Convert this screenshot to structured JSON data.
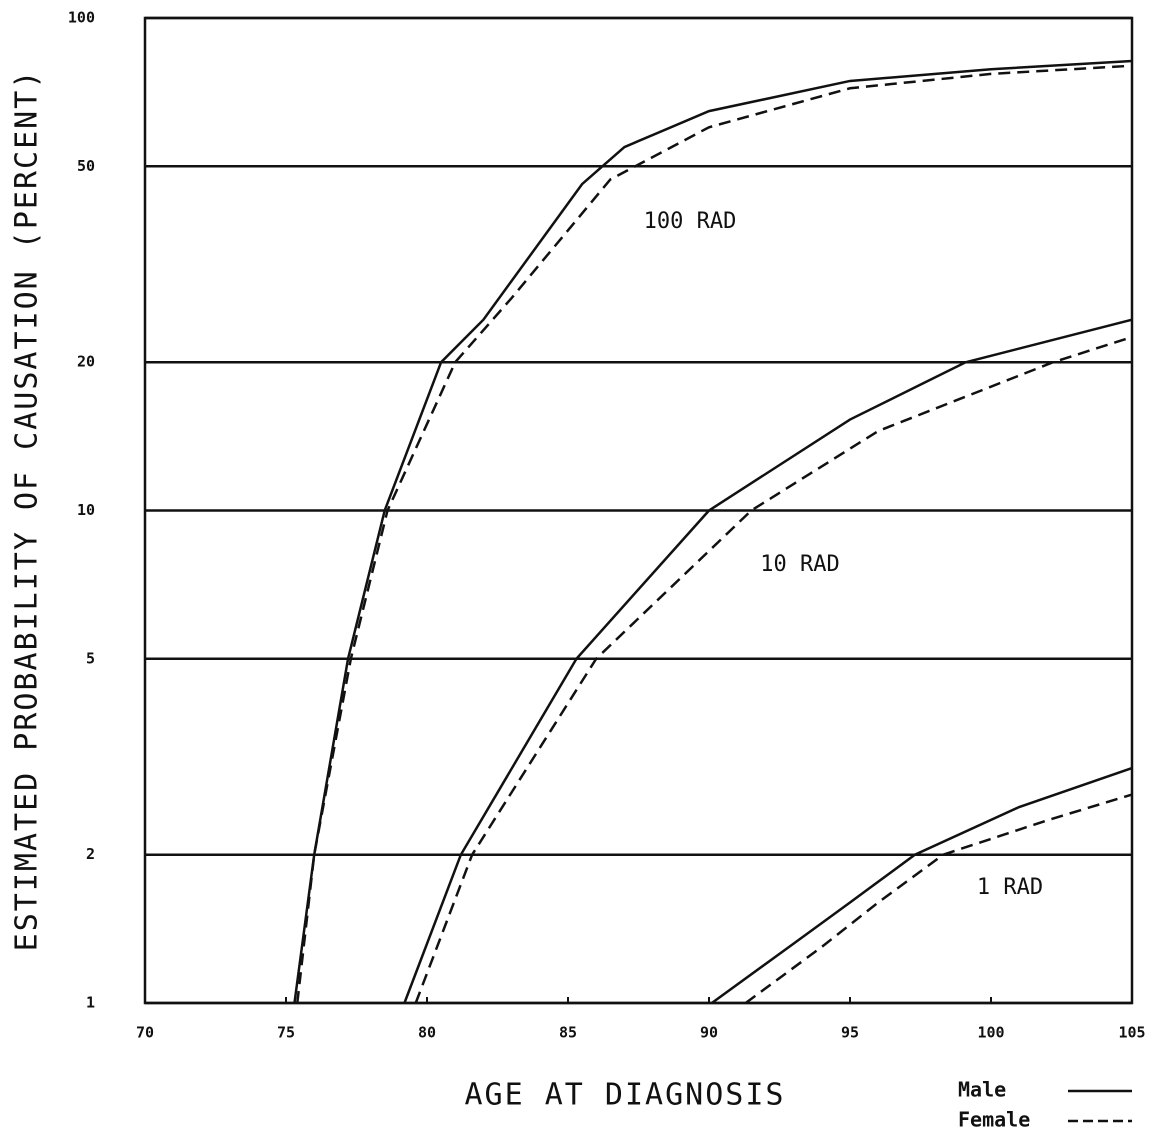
{
  "chart_data": {
    "type": "line",
    "xlabel": "AGE AT DIAGNOSIS",
    "ylabel": "ESTIMATED PROBABILITY OF CAUSATION (PERCENT)",
    "xlim": [
      70,
      105
    ],
    "xticks": [
      70,
      75,
      80,
      85,
      90,
      95,
      100,
      105
    ],
    "ylim": [
      1,
      100
    ],
    "yticks": [
      1,
      2,
      5,
      10,
      20,
      50,
      100
    ],
    "log_y": true,
    "grid": true,
    "legend_position": "lower right",
    "legend": [
      {
        "name": "Male",
        "dash": "solid"
      },
      {
        "name": "Female",
        "dash": "dashed"
      }
    ],
    "curves": [
      {
        "label": "100 RAD",
        "male": {
          "x": [
            75.3,
            76,
            77.2,
            78.5,
            80.5,
            82,
            85.5,
            87,
            90,
            95,
            100,
            105
          ],
          "values": [
            1,
            2,
            5,
            10,
            20,
            24.4,
            46,
            54.7,
            64.7,
            74.5,
            78.7,
            81.8
          ]
        },
        "female": {
          "x": [
            75.4,
            76,
            77.3,
            78.6,
            81,
            83,
            86.5,
            90,
            95,
            100,
            105
          ],
          "values": [
            1,
            2,
            5,
            10,
            20,
            27,
            47,
            60,
            72,
            77,
            80
          ]
        }
      },
      {
        "label": "10 RAD",
        "male": {
          "x": [
            79.2,
            81.2,
            85.3,
            90,
            95,
            99.1,
            105
          ],
          "values": [
            1,
            2,
            5,
            10,
            15.3,
            20,
            24.4
          ]
        },
        "female": {
          "x": [
            79.6,
            81.6,
            86,
            91.5,
            96,
            102.2,
            105
          ],
          "values": [
            1,
            2,
            5,
            10,
            14.5,
            20,
            22.5
          ]
        }
      },
      {
        "label": "1 RAD",
        "male": {
          "x": [
            90.1,
            93,
            95,
            97.3,
            101,
            105
          ],
          "values": [
            1,
            1.32,
            1.6,
            2,
            2.5,
            3.0
          ]
        },
        "female": {
          "x": [
            91.3,
            94,
            96,
            98.3,
            102,
            105
          ],
          "values": [
            1,
            1.3,
            1.6,
            2,
            2.35,
            2.65
          ]
        }
      }
    ]
  }
}
